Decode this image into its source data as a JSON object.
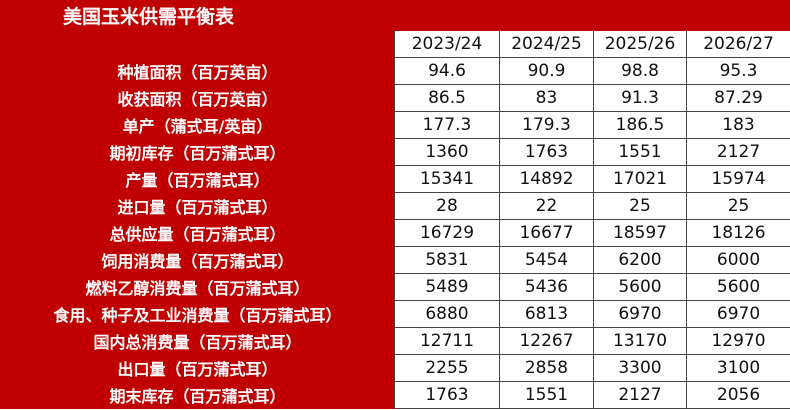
{
  "title": "美国玉米供需平衡表",
  "columns": [
    "2023/24",
    "2024/25",
    "2025/26",
    "2026/27"
  ],
  "rows": [
    {
      "label": "种植面积（百万英亩）",
      "values": [
        "94.6",
        "90.9",
        "98.8",
        "95.3"
      ]
    },
    {
      "label": "收获面积（百万英亩）",
      "values": [
        "86.5",
        "83",
        "91.3",
        "87.29"
      ]
    },
    {
      "label": "单产（蒲式耳/英亩）",
      "values": [
        "177.3",
        "179.3",
        "186.5",
        "183"
      ]
    },
    {
      "label": "期初库存（百万蒲式耳）",
      "values": [
        "1360",
        "1763",
        "1551",
        "2127"
      ]
    },
    {
      "label": "产量（百万蒲式耳）",
      "values": [
        "15341",
        "14892",
        "17021",
        "15974"
      ]
    },
    {
      "label": "进口量（百万蒲式耳）",
      "values": [
        "28",
        "22",
        "25",
        "25"
      ]
    },
    {
      "label": "总供应量（百万蒲式耳）",
      "values": [
        "16729",
        "16677",
        "18597",
        "18126"
      ]
    },
    {
      "label": "饲用消费量（百万蒲式耳）",
      "values": [
        "5831",
        "5454",
        "6200",
        "6000"
      ]
    },
    {
      "label": "燃料乙醇消费量（百万蒲式耳）",
      "values": [
        "5489",
        "5436",
        "5600",
        "5600"
      ]
    },
    {
      "label": "食用、种子及工业消费量（百万蒲式耳）",
      "values": [
        "6880",
        "6813",
        "6970",
        "6970"
      ]
    },
    {
      "label": "国内总消费量（百万蒲式耳）",
      "values": [
        "12711",
        "12267",
        "13170",
        "12970"
      ]
    },
    {
      "label": "出口量（百万蒲式耳）",
      "values": [
        "2255",
        "2858",
        "3300",
        "3100"
      ]
    },
    {
      "label": "期末库存（百万蒲式耳）",
      "values": [
        "1763",
        "1551",
        "2127",
        "2056"
      ]
    }
  ],
  "colors": {
    "header_red": "#c00000",
    "label_text": "#ffffff"
  }
}
